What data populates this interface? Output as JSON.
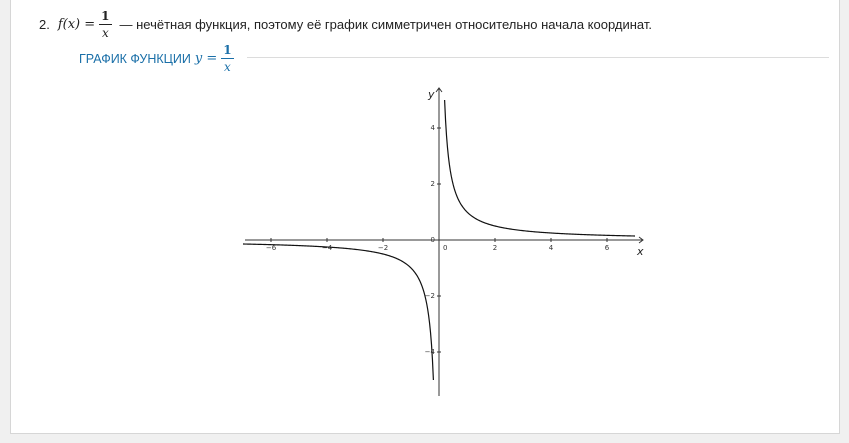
{
  "statement": {
    "number": "2.",
    "lhs": "f(x) =",
    "numerator": "1",
    "denominator": "x",
    "text": "— нечётная функция, поэтому её график симметричен относительно начала координат."
  },
  "subheading": {
    "text": "ГРАФИК ФУНКЦИИ",
    "lhs": "y =",
    "numerator": "1",
    "denominator": "x"
  },
  "chart_data": {
    "type": "line",
    "function": "y = 1/x",
    "xlim": [
      -7,
      7
    ],
    "ylim": [
      -5.5,
      5.5
    ],
    "x_ticks": [
      "-6",
      "-4",
      "-2",
      "0",
      "2",
      "4",
      "6"
    ],
    "y_ticks": [
      "4",
      "2",
      "0",
      "-2",
      "-4"
    ],
    "xlabel": "x",
    "ylabel": "y",
    "series": [
      {
        "x": [
          -7,
          -6,
          -5,
          -4,
          -3,
          -2,
          -1.5,
          -1,
          -0.7,
          -0.5,
          -0.4,
          -0.3,
          -0.25,
          -0.2
        ],
        "y": [
          -0.143,
          -0.167,
          -0.2,
          -0.25,
          -0.333,
          -0.5,
          -0.667,
          -1,
          -1.429,
          -2,
          -2.5,
          -3.333,
          -4,
          -5
        ]
      },
      {
        "x": [
          0.2,
          0.25,
          0.3,
          0.4,
          0.5,
          0.7,
          1,
          1.5,
          2,
          3,
          4,
          5,
          6,
          7
        ],
        "y": [
          5,
          4,
          3.333,
          2.5,
          2,
          1.429,
          1,
          0.667,
          0.5,
          0.333,
          0.25,
          0.2,
          0.167,
          0.143
        ]
      }
    ]
  }
}
